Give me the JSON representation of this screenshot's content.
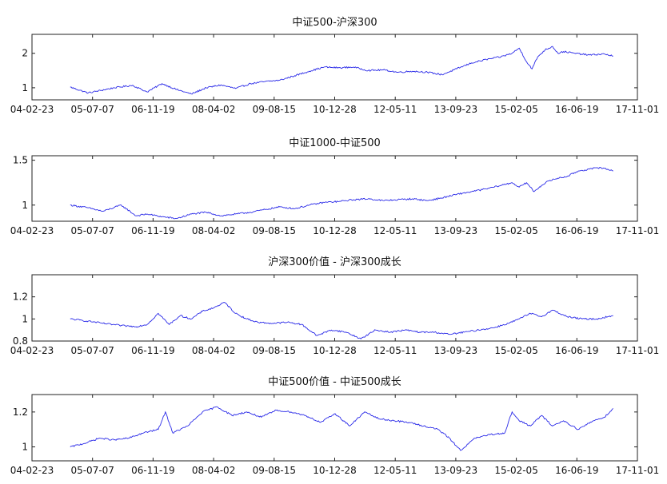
{
  "chart_data": [
    {
      "type": "line",
      "title": "中证500-沪深300",
      "xlabel": "",
      "ylabel": "",
      "x_ticks": [
        "04-02-23",
        "05-07-07",
        "06-11-19",
        "08-04-02",
        "09-08-15",
        "10-12-28",
        "12-05-11",
        "13-09-23",
        "15-02-05",
        "16-06-19",
        "17-11-01"
      ],
      "y_ticks": [
        "1",
        "2"
      ],
      "ylim": [
        0.65,
        2.55
      ],
      "grid": false,
      "series": [
        {
          "color": "#2a2ae8",
          "x": [
            "2005-01-04",
            "2005-06-01",
            "2006-01-01",
            "2006-06-01",
            "2006-10-01",
            "2007-02-01",
            "2007-06-01",
            "2007-10-01",
            "2008-02-01",
            "2008-06-01",
            "2008-10-01",
            "2009-02-01",
            "2009-06-01",
            "2009-10-01",
            "2010-02-01",
            "2010-06-01",
            "2010-10-01",
            "2011-02-01",
            "2011-06-01",
            "2011-10-01",
            "2012-02-01",
            "2012-06-01",
            "2012-10-01",
            "2013-02-01",
            "2013-06-01",
            "2013-10-01",
            "2014-02-01",
            "2014-06-01",
            "2014-10-01",
            "2015-01-01",
            "2015-03-01",
            "2015-05-01",
            "2015-06-15",
            "2015-08-01",
            "2015-10-01",
            "2015-12-01",
            "2016-01-15",
            "2016-03-01",
            "2016-06-01",
            "2016-10-01",
            "2017-02-01",
            "2017-04-15"
          ],
          "values": [
            1.02,
            0.85,
            1.0,
            1.07,
            0.88,
            1.12,
            0.95,
            0.82,
            1.0,
            1.08,
            0.98,
            1.12,
            1.18,
            1.22,
            1.35,
            1.48,
            1.6,
            1.58,
            1.6,
            1.5,
            1.52,
            1.45,
            1.48,
            1.45,
            1.38,
            1.55,
            1.72,
            1.82,
            1.9,
            2.0,
            2.15,
            1.75,
            1.55,
            1.9,
            2.1,
            2.2,
            2.0,
            2.05,
            2.0,
            1.95,
            1.98,
            1.92
          ]
        }
      ]
    },
    {
      "type": "line",
      "title": "中证1000-中证500",
      "xlabel": "",
      "ylabel": "",
      "x_ticks": [
        "04-02-23",
        "05-07-07",
        "06-11-19",
        "08-04-02",
        "09-08-15",
        "10-12-28",
        "12-05-11",
        "13-09-23",
        "15-02-05",
        "16-06-19",
        "17-11-01"
      ],
      "y_ticks": [
        "1",
        "1.5"
      ],
      "ylim": [
        0.82,
        1.55
      ],
      "grid": false,
      "series": [
        {
          "color": "#2a2ae8",
          "x": [
            "2005-01-04",
            "2005-06-01",
            "2005-10-01",
            "2006-03-01",
            "2006-07-01",
            "2006-10-01",
            "2007-02-01",
            "2007-06-01",
            "2007-10-01",
            "2008-02-01",
            "2008-06-01",
            "2008-10-01",
            "2009-02-01",
            "2009-06-01",
            "2009-10-01",
            "2010-02-01",
            "2010-06-01",
            "2010-10-01",
            "2011-02-01",
            "2011-06-01",
            "2011-10-01",
            "2012-02-01",
            "2012-06-01",
            "2012-10-01",
            "2013-02-01",
            "2013-06-01",
            "2013-10-01",
            "2014-02-01",
            "2014-06-01",
            "2014-10-01",
            "2015-01-01",
            "2015-03-01",
            "2015-05-01",
            "2015-07-01",
            "2015-09-01",
            "2015-11-01",
            "2016-01-15",
            "2016-04-01",
            "2016-07-01",
            "2016-10-01",
            "2017-01-01",
            "2017-04-15"
          ],
          "values": [
            1.0,
            0.97,
            0.93,
            1.0,
            0.88,
            0.9,
            0.87,
            0.85,
            0.9,
            0.92,
            0.88,
            0.9,
            0.92,
            0.95,
            0.98,
            0.96,
            1.0,
            1.03,
            1.04,
            1.06,
            1.07,
            1.05,
            1.06,
            1.07,
            1.05,
            1.08,
            1.12,
            1.15,
            1.18,
            1.22,
            1.25,
            1.2,
            1.25,
            1.15,
            1.22,
            1.27,
            1.3,
            1.32,
            1.38,
            1.4,
            1.42,
            1.38
          ]
        }
      ]
    },
    {
      "type": "line",
      "title": "沪深300价值 - 沪深300成长",
      "xlabel": "",
      "ylabel": "",
      "x_ticks": [
        "04-02-23",
        "05-07-07",
        "06-11-19",
        "08-04-02",
        "09-08-15",
        "10-12-28",
        "12-05-11",
        "13-09-23",
        "15-02-05",
        "16-06-19",
        "17-11-01"
      ],
      "y_ticks": [
        "0.8",
        "1",
        "1.2"
      ],
      "ylim": [
        0.8,
        1.4
      ],
      "grid": false,
      "series": [
        {
          "color": "#2a2ae8",
          "x": [
            "2005-01-04",
            "2005-06-01",
            "2005-10-01",
            "2006-03-01",
            "2006-07-01",
            "2006-10-01",
            "2007-01-01",
            "2007-04-01",
            "2007-07-01",
            "2007-10-01",
            "2008-01-01",
            "2008-04-01",
            "2008-07-01",
            "2008-10-01",
            "2009-01-01",
            "2009-04-01",
            "2009-08-01",
            "2009-12-01",
            "2010-04-01",
            "2010-08-01",
            "2010-12-01",
            "2011-04-01",
            "2011-08-01",
            "2011-12-01",
            "2012-04-01",
            "2012-08-01",
            "2012-12-01",
            "2013-04-01",
            "2013-08-01",
            "2013-12-01",
            "2014-04-01",
            "2014-08-01",
            "2014-12-01",
            "2015-03-01",
            "2015-06-01",
            "2015-09-01",
            "2015-12-01",
            "2016-04-01",
            "2016-08-01",
            "2016-12-01",
            "2017-03-01",
            "2017-04-15"
          ],
          "values": [
            1.0,
            0.98,
            0.96,
            0.94,
            0.93,
            0.95,
            1.05,
            0.95,
            1.03,
            1.0,
            1.07,
            1.1,
            1.15,
            1.05,
            1.0,
            0.97,
            0.96,
            0.97,
            0.95,
            0.85,
            0.9,
            0.88,
            0.82,
            0.9,
            0.88,
            0.9,
            0.88,
            0.88,
            0.86,
            0.88,
            0.9,
            0.92,
            0.96,
            1.0,
            1.05,
            1.02,
            1.08,
            1.02,
            1.0,
            1.0,
            1.02,
            1.03
          ]
        }
      ]
    },
    {
      "type": "line",
      "title": "中证500价值 - 中证500成长",
      "xlabel": "",
      "ylabel": "",
      "x_ticks": [
        "04-02-23",
        "05-07-07",
        "06-11-19",
        "08-04-02",
        "09-08-15",
        "10-12-28",
        "12-05-11",
        "13-09-23",
        "15-02-05",
        "16-06-19",
        "17-11-01"
      ],
      "y_ticks": [
        "1",
        "1.2"
      ],
      "ylim": [
        0.92,
        1.3
      ],
      "grid": false,
      "series": [
        {
          "color": "#2a2ae8",
          "x": [
            "2005-01-04",
            "2005-05-01",
            "2005-09-01",
            "2006-01-01",
            "2006-05-01",
            "2006-09-01",
            "2007-01-01",
            "2007-03-01",
            "2007-05-01",
            "2007-09-01",
            "2008-01-01",
            "2008-05-01",
            "2008-09-01",
            "2009-01-01",
            "2009-05-01",
            "2009-09-01",
            "2010-01-01",
            "2010-05-01",
            "2010-09-01",
            "2011-01-01",
            "2011-05-01",
            "2011-09-01",
            "2012-01-01",
            "2012-05-01",
            "2012-09-01",
            "2013-01-01",
            "2013-05-01",
            "2013-08-01",
            "2013-11-01",
            "2014-03-01",
            "2014-07-01",
            "2014-11-01",
            "2015-01-01",
            "2015-03-01",
            "2015-06-01",
            "2015-09-01",
            "2015-12-01",
            "2016-03-01",
            "2016-07-01",
            "2016-11-01",
            "2017-02-01",
            "2017-04-15"
          ],
          "values": [
            1.0,
            1.02,
            1.05,
            1.04,
            1.05,
            1.08,
            1.1,
            1.2,
            1.08,
            1.12,
            1.2,
            1.23,
            1.18,
            1.2,
            1.17,
            1.21,
            1.2,
            1.18,
            1.14,
            1.19,
            1.12,
            1.2,
            1.16,
            1.15,
            1.14,
            1.12,
            1.1,
            1.05,
            0.98,
            1.05,
            1.07,
            1.08,
            1.2,
            1.15,
            1.12,
            1.18,
            1.12,
            1.15,
            1.1,
            1.15,
            1.17,
            1.22
          ]
        }
      ]
    }
  ]
}
